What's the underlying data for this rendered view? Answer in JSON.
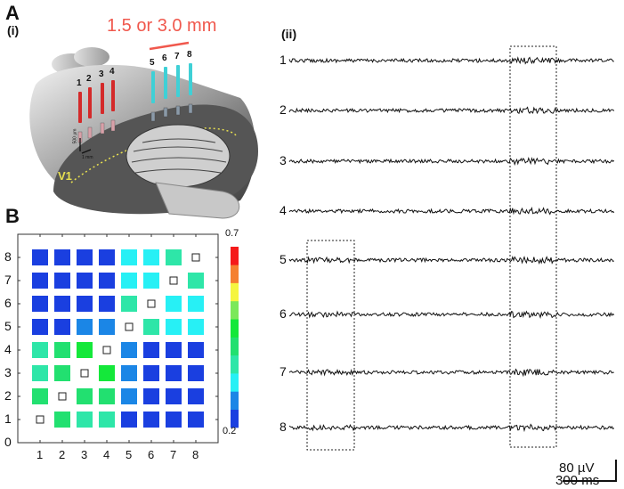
{
  "panel_a": {
    "label": "A",
    "sub_i": "(i)",
    "sub_ii": "(ii)",
    "distance_label": "1.5 or 3.0 mm",
    "distance_color": "#f0584d",
    "electrodes_red": [
      "1",
      "2",
      "3",
      "4"
    ],
    "electrodes_cyan": [
      "5",
      "6",
      "7",
      "8"
    ],
    "red_color": "#d42a2a",
    "cyan_color": "#3fd0d6",
    "region_label": "V1",
    "scale_vertical": "500 µm",
    "scale_horizontal": "1 mm"
  },
  "traces": {
    "channels": [
      "1",
      "2",
      "3",
      "4",
      "5",
      "6",
      "7",
      "8"
    ],
    "scale_amplitude": "80 µV",
    "scale_time": "300 ms"
  },
  "panel_b": {
    "label": "B"
  },
  "chart_data": {
    "type": "heatmap",
    "x_ticks": [
      "1",
      "2",
      "3",
      "4",
      "5",
      "6",
      "7",
      "8"
    ],
    "y_ticks": [
      "0",
      "1",
      "2",
      "3",
      "4",
      "5",
      "6",
      "7",
      "8"
    ],
    "colorbar": {
      "min": 0.2,
      "max": 0.7,
      "min_label": "0.2",
      "max_label": "0.7",
      "colors": [
        "#1a3fe0",
        "#1b86e6",
        "#27f0f5",
        "#2ee6a8",
        "#22e070",
        "#14e83a",
        "#7be85a",
        "#f5f540",
        "#f58030",
        "#f51a1a"
      ]
    },
    "rows_y8_to_y1": [
      [
        0.22,
        0.22,
        0.22,
        0.22,
        0.32,
        0.32,
        0.37,
        null
      ],
      [
        0.22,
        0.22,
        0.22,
        0.22,
        0.32,
        0.32,
        null,
        0.37
      ],
      [
        0.22,
        0.22,
        0.22,
        0.22,
        0.37,
        null,
        0.32,
        0.32
      ],
      [
        0.22,
        0.22,
        0.27,
        0.27,
        null,
        0.37,
        0.32,
        0.32
      ],
      [
        0.37,
        0.42,
        0.47,
        null,
        0.27,
        0.22,
        0.22,
        0.22
      ],
      [
        0.37,
        0.42,
        null,
        0.47,
        0.27,
        0.22,
        0.22,
        0.22
      ],
      [
        0.42,
        null,
        0.42,
        0.42,
        0.27,
        0.22,
        0.22,
        0.22
      ],
      [
        null,
        0.42,
        0.37,
        0.37,
        0.22,
        0.22,
        0.22,
        0.22
      ]
    ]
  }
}
